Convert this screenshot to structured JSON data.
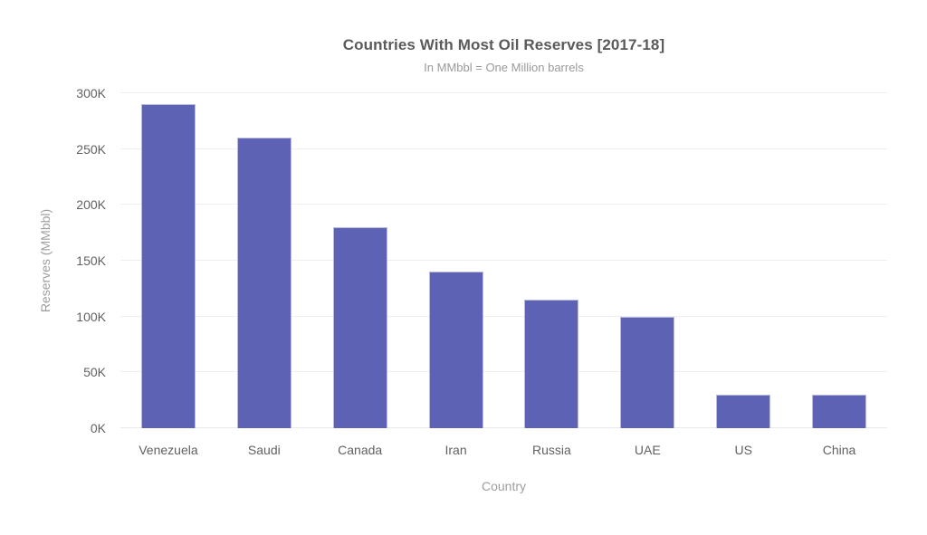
{
  "chart": {
    "title": "Countries With Most Oil Reserves [2017-18]",
    "subtitle": "In MMbbl = One Million barrels",
    "x_axis_title": "Country",
    "y_axis_title": "Reserves (MMbbl)"
  },
  "chart_data": {
    "type": "bar",
    "title": "Countries With Most Oil Reserves [2017-18]",
    "subtitle": "In MMbbl = One Million barrels",
    "xlabel": "Country",
    "ylabel": "Reserves (MMbbl)",
    "categories": [
      "Venezuela",
      "Saudi",
      "Canada",
      "Iran",
      "Russia",
      "UAE",
      "US",
      "China"
    ],
    "values": [
      290000,
      260000,
      180000,
      140000,
      115000,
      100000,
      30000,
      30000
    ],
    "value_unit": "MMbbl",
    "ylim": [
      0,
      300000
    ],
    "ytick_labels": [
      "0K",
      "50K",
      "100K",
      "150K",
      "200K",
      "250K",
      "300K"
    ],
    "grid": true,
    "legend": false,
    "bar_color": "#5D62B5"
  },
  "colors": {
    "bar_fill": "#5D62B5",
    "bar_border": "#B9BCDF",
    "title_text": "#5A5A5A",
    "subtitle_text": "#9A9A9A",
    "tick_text": "#616161",
    "axis_title_text": "#9E9E9E",
    "gridline": "#EFEFEF",
    "background": "#FFFFFF"
  }
}
